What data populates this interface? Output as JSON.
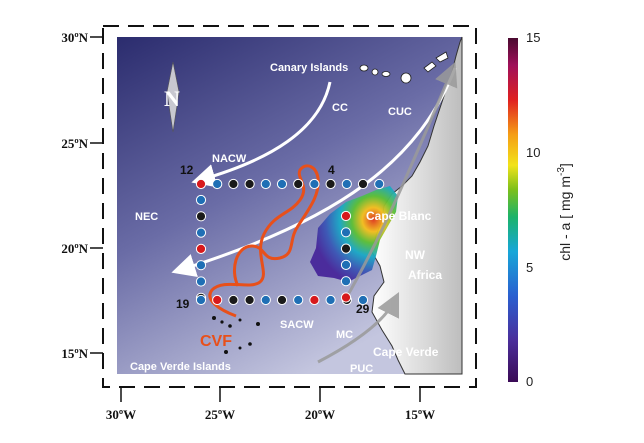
{
  "axes": {
    "lat_labels": [
      "30ºN",
      "25ºN",
      "20ºN",
      "15ºN"
    ],
    "lon_labels": [
      "30ºW",
      "25ºW",
      "20ºW",
      "15ºW"
    ]
  },
  "colorbar": {
    "label": "chl - a [ mg m",
    "label_sup": "-3",
    "label_end": "]",
    "ticks": [
      "15",
      "10",
      "5",
      "0"
    ],
    "range": [
      0,
      15
    ]
  },
  "north": "N",
  "place_labels": {
    "canary": "Canary Islands",
    "cape_verde_islands": "Cape Verde Islands",
    "cape_blanc": "Cape Blanc",
    "nw": "NW",
    "africa": "Africa",
    "cape_verde": "Cape Verde"
  },
  "current_labels": {
    "cc": "CC",
    "cuc": "CUC",
    "nacw": "NACW",
    "nec": "NEC",
    "sacw": "SACW",
    "mc": "MC",
    "puc": "PUC",
    "cvf": "CVF"
  },
  "station_labels": {
    "s12": "12",
    "s4": "4",
    "s19": "19",
    "s29": "29"
  },
  "station_colors": {
    "blue": "#1f6fb5",
    "red": "#d7191c",
    "black": "#1a1a1a"
  },
  "stations": {
    "top": [
      "red",
      "blue",
      "black",
      "black",
      "blue",
      "blue",
      "black",
      "blue",
      "black",
      "blue",
      "black",
      "blue"
    ],
    "left": [
      "blue",
      "black",
      "blue",
      "red",
      "blue",
      "blue",
      "black"
    ],
    "bottom": [
      "blue",
      "red",
      "black",
      "black",
      "blue",
      "black",
      "blue",
      "red",
      "blue",
      "black",
      "blue"
    ],
    "inner": [
      "red",
      "blue",
      "black",
      "blue",
      "blue",
      "red"
    ]
  },
  "colors": {
    "ocean_deep": "#2b2c6e",
    "ocean_light": "#b6b9d6",
    "cvf_front": "#e8501a",
    "land": "#e4e4e4"
  }
}
